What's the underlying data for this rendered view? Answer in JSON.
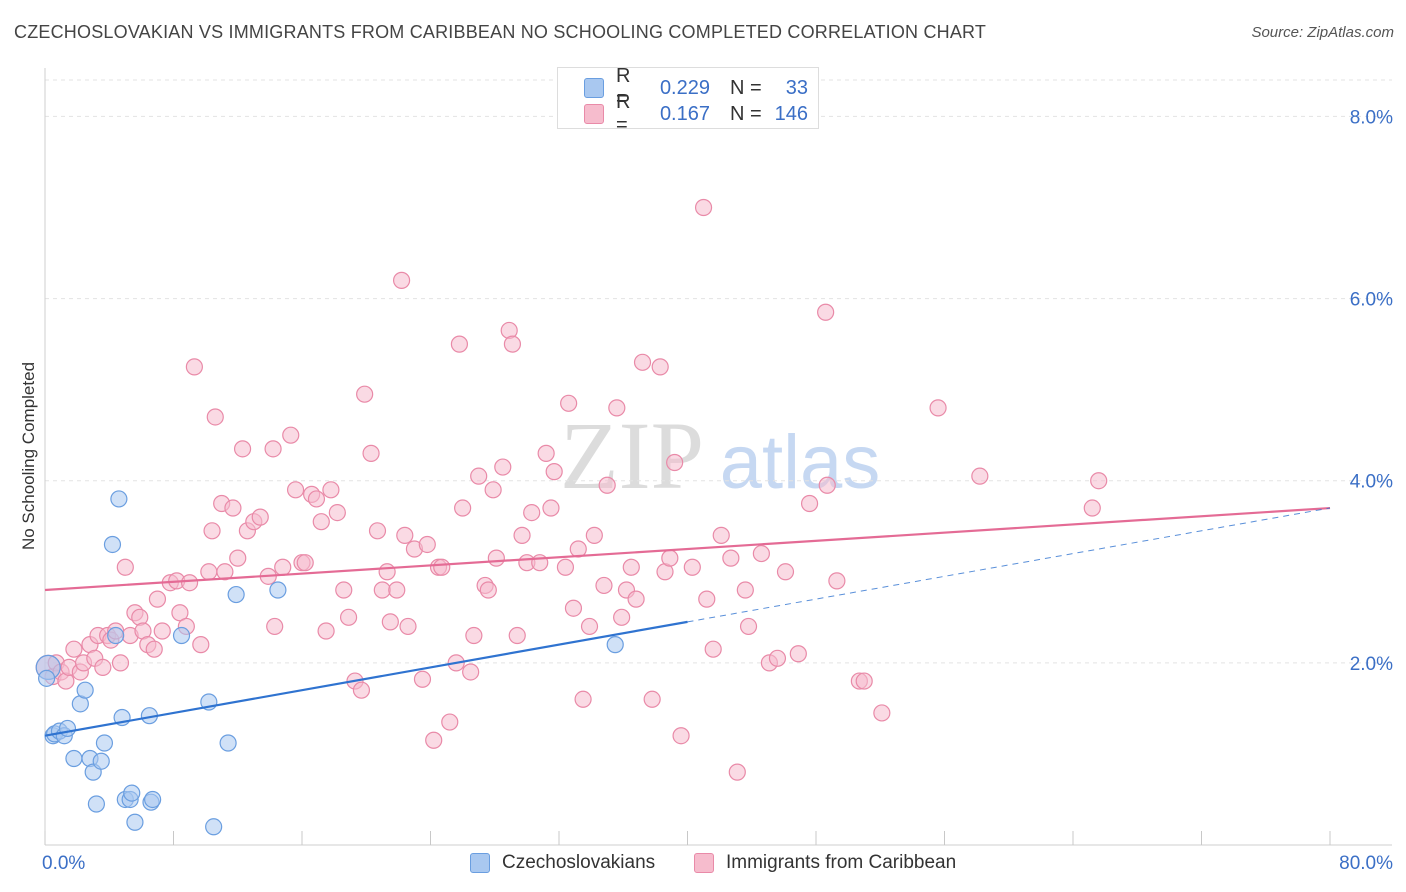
{
  "title": "CZECHOSLOVAKIAN VS IMMIGRANTS FROM CARIBBEAN NO SCHOOLING COMPLETED CORRELATION CHART",
  "source": "Source: ZipAtlas.com",
  "watermark": {
    "zip": "ZIP",
    "atlas": "atlas"
  },
  "legend": {
    "rows": [
      {
        "r_label": "R =",
        "r_value": "0.229",
        "n_label": "N =",
        "n_value": "33"
      },
      {
        "r_label": "R =",
        "r_value": "0.167",
        "n_label": "N =",
        "n_value": "146"
      }
    ]
  },
  "colors": {
    "blue_fill": "#a9c8f0",
    "blue_stroke": "#6a9ee0",
    "blue_line": "#2f73d0",
    "pink_fill": "#f6bccd",
    "pink_stroke": "#e98aa8",
    "pink_line": "#e46b95",
    "axis_label": "#3b6fc6",
    "grid": "#e3e3e3"
  },
  "chart_data": {
    "type": "scatter",
    "title": "CZECHOSLOVAKIAN VS IMMIGRANTS FROM CARIBBEAN NO SCHOOLING COMPLETED CORRELATION CHART",
    "xlabel": "",
    "ylabel": "No Schooling Completed",
    "xlim": [
      0,
      80
    ],
    "ylim": [
      0,
      8.4
    ],
    "x_tick_labels": [
      "0.0%",
      "80.0%"
    ],
    "y_ticks": [
      2,
      4,
      6,
      8
    ],
    "y_tick_labels": [
      "2.0%",
      "4.0%",
      "6.0%",
      "8.0%"
    ],
    "grid": true,
    "legend_position": "bottom",
    "series": [
      {
        "name": "Czechoslovakians",
        "color": "#a9c8f0",
        "points": [
          [
            0.2,
            1.95
          ],
          [
            0.5,
            1.2
          ],
          [
            0.6,
            1.22
          ],
          [
            0.9,
            1.25
          ],
          [
            1.2,
            1.2
          ],
          [
            1.4,
            1.28
          ],
          [
            1.8,
            0.95
          ],
          [
            2.2,
            1.55
          ],
          [
            2.5,
            1.7
          ],
          [
            2.8,
            0.95
          ],
          [
            3.0,
            0.8
          ],
          [
            3.2,
            0.45
          ],
          [
            3.5,
            0.92
          ],
          [
            3.7,
            1.12
          ],
          [
            4.2,
            3.3
          ],
          [
            4.4,
            2.3
          ],
          [
            4.6,
            3.8
          ],
          [
            4.8,
            1.4
          ],
          [
            5.0,
            0.5
          ],
          [
            5.3,
            0.5
          ],
          [
            5.4,
            0.57
          ],
          [
            5.6,
            0.25
          ],
          [
            6.5,
            1.42
          ],
          [
            6.6,
            0.47
          ],
          [
            6.7,
            0.5
          ],
          [
            8.5,
            2.3
          ],
          [
            10.2,
            1.57
          ],
          [
            10.5,
            0.2
          ],
          [
            11.4,
            1.12
          ],
          [
            11.9,
            2.75
          ],
          [
            14.5,
            2.8
          ],
          [
            35.5,
            2.2
          ],
          [
            0.1,
            1.83
          ]
        ],
        "trendline": {
          "from": [
            0,
            1.2
          ],
          "to": [
            40,
            2.45
          ]
        }
      },
      {
        "name": "Immigrants from Caribbean",
        "color": "#f6bccd",
        "points": [
          [
            0.2,
            1.95
          ],
          [
            0.5,
            1.85
          ],
          [
            0.7,
            2.0
          ],
          [
            1.0,
            1.9
          ],
          [
            1.3,
            1.8
          ],
          [
            1.5,
            1.95
          ],
          [
            1.8,
            2.15
          ],
          [
            2.2,
            1.9
          ],
          [
            2.4,
            2.0
          ],
          [
            2.8,
            2.2
          ],
          [
            3.1,
            2.05
          ],
          [
            3.3,
            2.3
          ],
          [
            3.6,
            1.95
          ],
          [
            3.9,
            2.3
          ],
          [
            4.1,
            2.25
          ],
          [
            4.4,
            2.35
          ],
          [
            4.7,
            2.0
          ],
          [
            5.0,
            3.05
          ],
          [
            5.3,
            2.3
          ],
          [
            5.6,
            2.55
          ],
          [
            5.9,
            2.5
          ],
          [
            6.1,
            2.35
          ],
          [
            6.4,
            2.2
          ],
          [
            6.8,
            2.15
          ],
          [
            7.0,
            2.7
          ],
          [
            7.3,
            2.35
          ],
          [
            7.8,
            2.88
          ],
          [
            8.2,
            2.9
          ],
          [
            8.4,
            2.55
          ],
          [
            8.8,
            2.4
          ],
          [
            9.0,
            2.88
          ],
          [
            9.3,
            5.25
          ],
          [
            9.7,
            2.2
          ],
          [
            10.2,
            3.0
          ],
          [
            10.4,
            3.45
          ],
          [
            10.6,
            4.7
          ],
          [
            11.0,
            3.75
          ],
          [
            11.2,
            3.0
          ],
          [
            11.7,
            3.7
          ],
          [
            12.0,
            3.15
          ],
          [
            12.3,
            4.35
          ],
          [
            12.6,
            3.45
          ],
          [
            13.0,
            3.55
          ],
          [
            13.4,
            3.6
          ],
          [
            13.9,
            2.95
          ],
          [
            14.2,
            4.35
          ],
          [
            14.3,
            2.4
          ],
          [
            14.8,
            3.05
          ],
          [
            15.3,
            4.5
          ],
          [
            15.6,
            3.9
          ],
          [
            16.0,
            3.1
          ],
          [
            16.2,
            3.1
          ],
          [
            16.6,
            3.85
          ],
          [
            16.9,
            3.8
          ],
          [
            17.2,
            3.55
          ],
          [
            17.5,
            2.35
          ],
          [
            17.8,
            3.9
          ],
          [
            18.2,
            3.65
          ],
          [
            18.6,
            2.8
          ],
          [
            18.9,
            2.5
          ],
          [
            19.3,
            1.8
          ],
          [
            19.7,
            1.7
          ],
          [
            19.9,
            4.95
          ],
          [
            20.3,
            4.3
          ],
          [
            20.7,
            3.45
          ],
          [
            21.0,
            2.8
          ],
          [
            21.3,
            3.0
          ],
          [
            21.5,
            2.45
          ],
          [
            21.9,
            2.8
          ],
          [
            22.2,
            6.2
          ],
          [
            22.4,
            3.4
          ],
          [
            22.6,
            2.4
          ],
          [
            23.0,
            3.25
          ],
          [
            23.5,
            1.82
          ],
          [
            23.8,
            3.3
          ],
          [
            24.2,
            1.15
          ],
          [
            24.5,
            3.05
          ],
          [
            24.7,
            3.05
          ],
          [
            25.2,
            1.35
          ],
          [
            25.6,
            2.0
          ],
          [
            25.8,
            5.5
          ],
          [
            26.0,
            3.7
          ],
          [
            26.5,
            1.9
          ],
          [
            26.7,
            2.3
          ],
          [
            27.0,
            4.05
          ],
          [
            27.4,
            2.85
          ],
          [
            27.6,
            2.8
          ],
          [
            27.9,
            3.9
          ],
          [
            28.1,
            3.15
          ],
          [
            28.5,
            4.15
          ],
          [
            28.9,
            5.65
          ],
          [
            29.1,
            5.5
          ],
          [
            29.4,
            2.3
          ],
          [
            29.7,
            3.4
          ],
          [
            30.0,
            3.1
          ],
          [
            30.3,
            3.65
          ],
          [
            30.8,
            3.1
          ],
          [
            31.2,
            4.3
          ],
          [
            31.5,
            3.7
          ],
          [
            31.7,
            4.1
          ],
          [
            32.4,
            3.05
          ],
          [
            32.6,
            4.85
          ],
          [
            32.9,
            2.6
          ],
          [
            33.2,
            3.25
          ],
          [
            33.5,
            1.6
          ],
          [
            33.9,
            2.4
          ],
          [
            34.2,
            3.4
          ],
          [
            34.8,
            2.85
          ],
          [
            35.0,
            3.95
          ],
          [
            35.6,
            4.8
          ],
          [
            35.9,
            2.5
          ],
          [
            36.2,
            2.8
          ],
          [
            36.5,
            3.05
          ],
          [
            36.8,
            2.7
          ],
          [
            37.2,
            5.3
          ],
          [
            37.8,
            1.6
          ],
          [
            38.3,
            5.25
          ],
          [
            38.6,
            3.0
          ],
          [
            38.9,
            3.15
          ],
          [
            39.2,
            4.2
          ],
          [
            39.6,
            1.2
          ],
          [
            40.3,
            3.05
          ],
          [
            41.2,
            2.7
          ],
          [
            41.6,
            2.15
          ],
          [
            42.1,
            3.4
          ],
          [
            43.1,
            0.8
          ],
          [
            42.7,
            3.15
          ],
          [
            43.6,
            2.8
          ],
          [
            43.8,
            2.4
          ],
          [
            44.6,
            3.2
          ],
          [
            45.1,
            2.0
          ],
          [
            45.6,
            2.05
          ],
          [
            46.1,
            3.0
          ],
          [
            46.9,
            2.1
          ],
          [
            47.6,
            3.75
          ],
          [
            48.7,
            3.95
          ],
          [
            49.3,
            2.9
          ],
          [
            50.7,
            1.8
          ],
          [
            51.0,
            1.8
          ],
          [
            48.6,
            5.85
          ],
          [
            52.1,
            1.45
          ],
          [
            55.6,
            4.8
          ],
          [
            58.2,
            4.05
          ],
          [
            65.6,
            4.0
          ],
          [
            65.2,
            3.7
          ],
          [
            41.0,
            7.0
          ]
        ],
        "trendline": {
          "from": [
            0,
            2.8
          ],
          "to": [
            80,
            3.7
          ]
        }
      }
    ]
  }
}
